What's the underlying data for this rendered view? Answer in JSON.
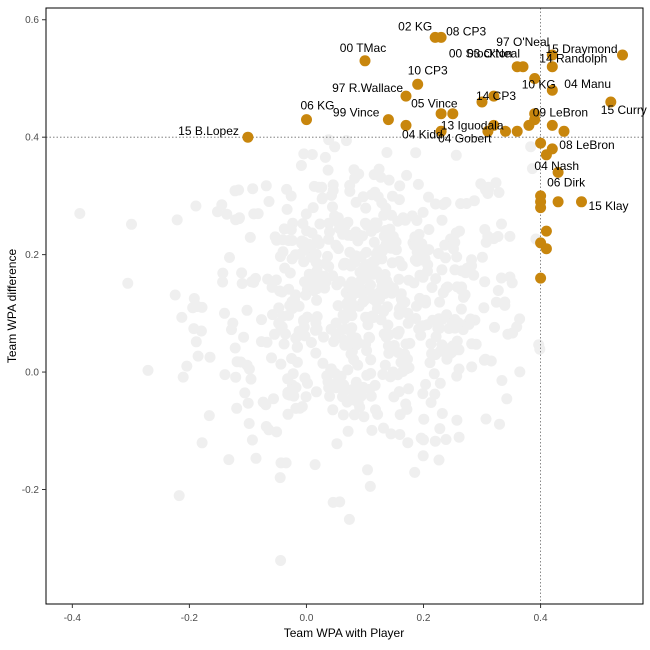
{
  "chart_data": {
    "type": "scatter",
    "title": "",
    "xlabel": "Team WPA with Player",
    "ylabel": "Team WPA difference",
    "xlim": [
      -0.445,
      0.575
    ],
    "ylim": [
      -0.395,
      0.62
    ],
    "xticks": [
      -0.4,
      -0.2,
      0.0,
      0.2,
      0.4
    ],
    "xtick_labels": [
      "-0.4",
      "-0.2",
      "0.0",
      "0.2",
      "0.4"
    ],
    "yticks": [
      -0.2,
      0.0,
      0.2,
      0.4,
      0.6
    ],
    "ytick_labels": [
      "-0.2",
      "0.0",
      "0.2",
      "0.4",
      "0.6"
    ],
    "reference_lines": {
      "x": 0.4,
      "y": 0.4
    },
    "colors": {
      "highlight": "#c8860d",
      "background_points": "#efefef",
      "reference": "#6e6e6e",
      "frame": "#000000"
    },
    "highlighted": [
      {
        "label": "02 KG",
        "x": 0.22,
        "y": 0.57
      },
      {
        "label": "08 CP3",
        "x": 0.23,
        "y": 0.57
      },
      {
        "label": "97 O'Neal",
        "x": 0.42,
        "y": 0.54
      },
      {
        "label": "00 TMac",
        "x": 0.1,
        "y": 0.53
      },
      {
        "label": "00 Stockton",
        "x": 0.36,
        "y": 0.52
      },
      {
        "label": "03 O'Neal",
        "x": 0.37,
        "y": 0.52
      },
      {
        "label": "15 Draymond",
        "x": 0.54,
        "y": 0.54
      },
      {
        "label": "14 Randolph",
        "x": 0.42,
        "y": 0.52
      },
      {
        "label": "10 CP3",
        "x": 0.19,
        "y": 0.49
      },
      {
        "label": "97 R.Wallace",
        "x": 0.17,
        "y": 0.47
      },
      {
        "label": "14 CP3",
        "x": 0.3,
        "y": 0.46
      },
      {
        "label": "10 KG",
        "x": 0.39,
        "y": 0.5
      },
      {
        "label": "04 Manu",
        "x": 0.42,
        "y": 0.48
      },
      {
        "label": "05 Vince",
        "x": 0.23,
        "y": 0.44
      },
      {
        "label": "99 Vince",
        "x": 0.14,
        "y": 0.43
      },
      {
        "label": "06 KG",
        "x": 0.0,
        "y": 0.43
      },
      {
        "label": "15 Curry",
        "x": 0.52,
        "y": 0.46
      },
      {
        "label": "13 Iguodala",
        "x": 0.34,
        "y": 0.41
      },
      {
        "label": "09 LeBron",
        "x": 0.39,
        "y": 0.43
      },
      {
        "label": "15 B.Lopez",
        "x": -0.1,
        "y": 0.4
      },
      {
        "label": "04 Kidd",
        "x": 0.17,
        "y": 0.42
      },
      {
        "label": "04 Gobert",
        "x": 0.23,
        "y": 0.41
      },
      {
        "label": "08 LeBron",
        "x": 0.42,
        "y": 0.38
      },
      {
        "label": "04 Nash",
        "x": 0.41,
        "y": 0.37
      },
      {
        "label": "06 Dirk",
        "x": 0.43,
        "y": 0.34
      },
      {
        "label": "15 Klay",
        "x": 0.47,
        "y": 0.29
      }
    ],
    "highlighted_unlabeled": [
      {
        "x": 0.25,
        "y": 0.44
      },
      {
        "x": 0.32,
        "y": 0.47
      },
      {
        "x": 0.32,
        "y": 0.42
      },
      {
        "x": 0.38,
        "y": 0.42
      },
      {
        "x": 0.42,
        "y": 0.42
      },
      {
        "x": 0.44,
        "y": 0.41
      },
      {
        "x": 0.4,
        "y": 0.39
      },
      {
        "x": 0.4,
        "y": 0.3
      },
      {
        "x": 0.4,
        "y": 0.29
      },
      {
        "x": 0.4,
        "y": 0.28
      },
      {
        "x": 0.41,
        "y": 0.24
      },
      {
        "x": 0.4,
        "y": 0.22
      },
      {
        "x": 0.41,
        "y": 0.21
      },
      {
        "x": 0.4,
        "y": 0.16
      },
      {
        "x": 0.43,
        "y": 0.29
      },
      {
        "x": 0.39,
        "y": 0.44
      },
      {
        "x": 0.36,
        "y": 0.41
      },
      {
        "x": 0.31,
        "y": 0.41
      }
    ],
    "background_cloud": {
      "count": 650,
      "x_mean": 0.1,
      "x_sd": 0.14,
      "y_mean": 0.12,
      "y_sd": 0.13
    }
  }
}
